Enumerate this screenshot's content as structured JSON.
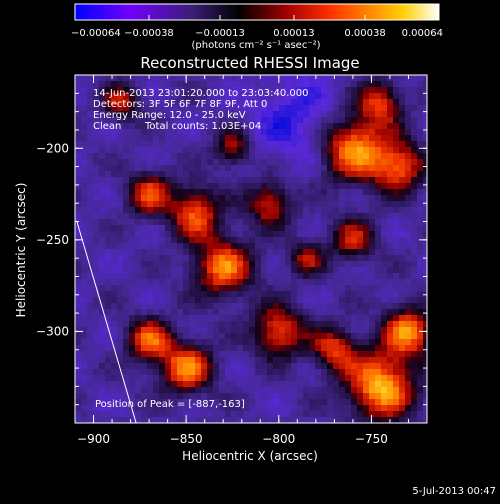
{
  "window": {
    "footer_date": "5-Jul-2013 00:47"
  },
  "colors": {
    "background": "#000000",
    "axis": "#ffffff",
    "colormap": [
      "#0000ff",
      "#8000ff",
      "#3c1e78",
      "#000000",
      "#a00000",
      "#ff3000",
      "#ff8000",
      "#ffd000",
      "#ffffa0",
      "#ffffff"
    ]
  },
  "chart_data": {
    "type": "heatmap",
    "title": "Reconstructed RHESSI Image",
    "xlabel": "Heliocentric X (arcsec)",
    "ylabel": "Heliocentric Y (arcsec)",
    "xlim": [
      -910,
      -720
    ],
    "ylim": [
      -350,
      -160
    ],
    "xticks": [
      -900,
      -850,
      -800,
      -750
    ],
    "yticks": [
      -300,
      -250,
      -200
    ],
    "xtick_labels": [
      "−900",
      "−850",
      "−800",
      "−750"
    ],
    "ytick_labels": [
      "−300",
      "−250",
      "−200"
    ],
    "colorbar": {
      "range": [
        -0.00064,
        0.00064
      ],
      "ticks": [
        -0.00064,
        -0.00038,
        -0.00013,
        0.00013,
        0.00038,
        0.00064
      ],
      "tick_labels": [
        "−0.00064",
        "−0.00038",
        "−0.00013",
        "0.00013",
        "0.00038",
        "0.00064"
      ],
      "unit_label": "(photons cm⁻² s⁻¹ asec⁻²)"
    },
    "annotations": {
      "time_range": "14-Jun-2013 23:01:20.000 to 23:03:40.000",
      "detectors": "Detectors: 3F 5F 6F 7F 8F 9F, Att 0",
      "energy": "Energy Range: 12.0 - 25.0 keV",
      "method": "Clean",
      "total_counts": "Total counts: 1.03E+04",
      "peak": "Position of Peak = [-887,-163]"
    },
    "limb": {
      "points": [
        [
          -909,
          -240
        ],
        [
          -877,
          -350
        ]
      ]
    },
    "grid": false
  }
}
